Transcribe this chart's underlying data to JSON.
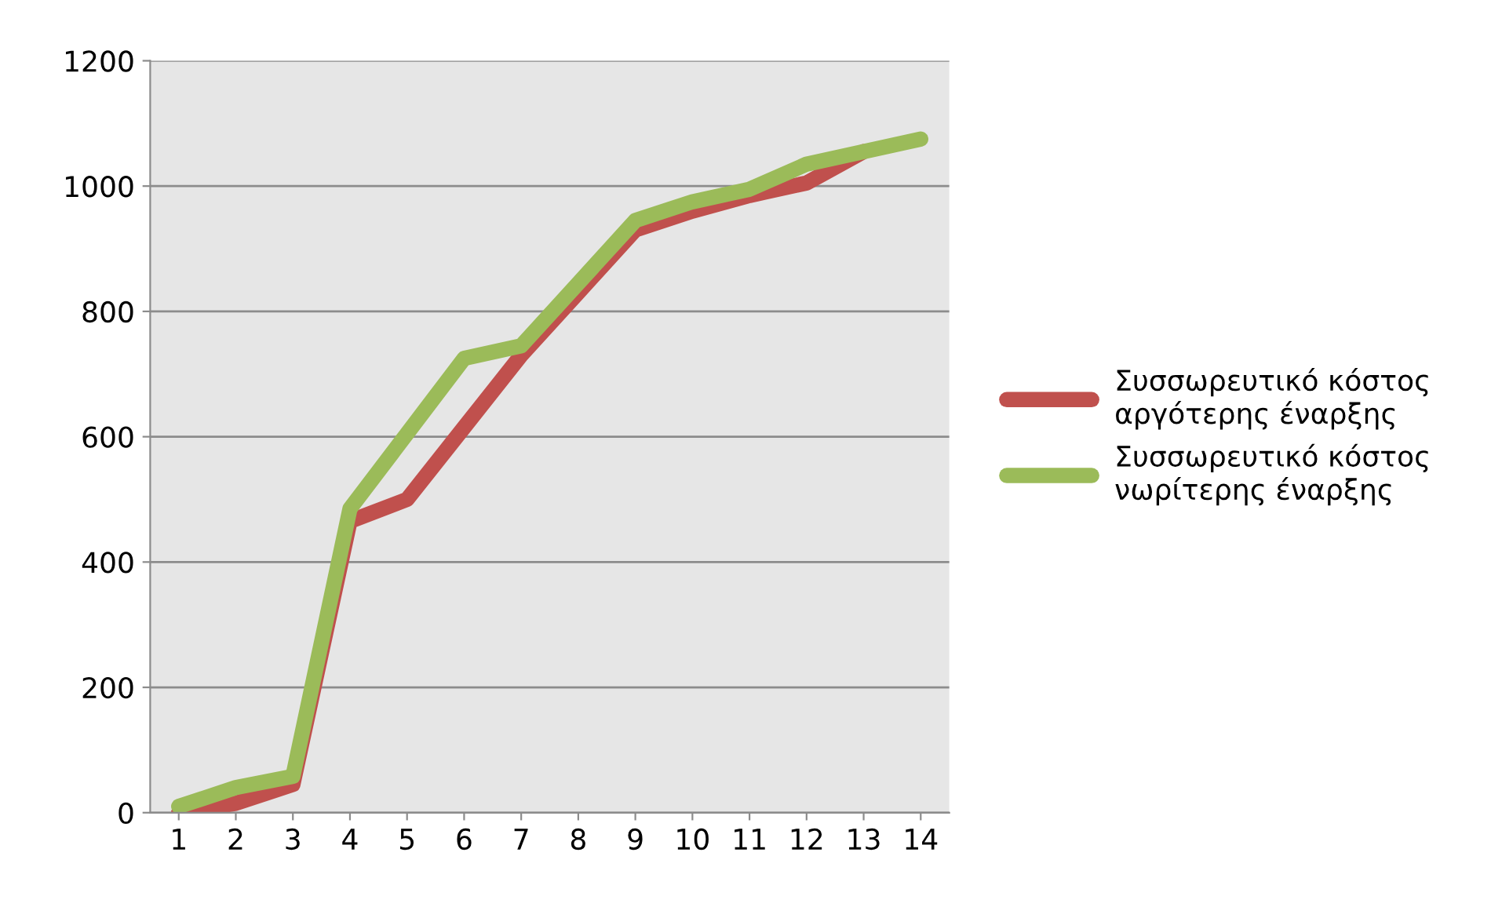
{
  "chart_data": {
    "type": "line",
    "categories": [
      "1",
      "2",
      "3",
      "4",
      "5",
      "6",
      "7",
      "8",
      "9",
      "10",
      "11",
      "12",
      "13",
      "14"
    ],
    "series": [
      {
        "name": "Συσσωρευτικό κόστος αργότερης έναρξης",
        "color": "#c0504d",
        "values": [
          0,
          15,
          45,
          465,
          500,
          615,
          730,
          830,
          930,
          960,
          985,
          1005,
          1055,
          null
        ]
      },
      {
        "name": "Συσσωρευτικό κόστος νωρίτερης έναρξης",
        "color": "#9bbb59",
        "values": [
          10,
          40,
          58,
          485,
          605,
          725,
          745,
          845,
          945,
          975,
          995,
          1035,
          1055,
          1075
        ]
      }
    ],
    "ylim": [
      0,
      1200
    ],
    "yticks": [
      0,
      200,
      400,
      600,
      800,
      1000,
      1200
    ],
    "grid": "y",
    "legend": "right",
    "marker": "none",
    "line_style": "solid"
  }
}
